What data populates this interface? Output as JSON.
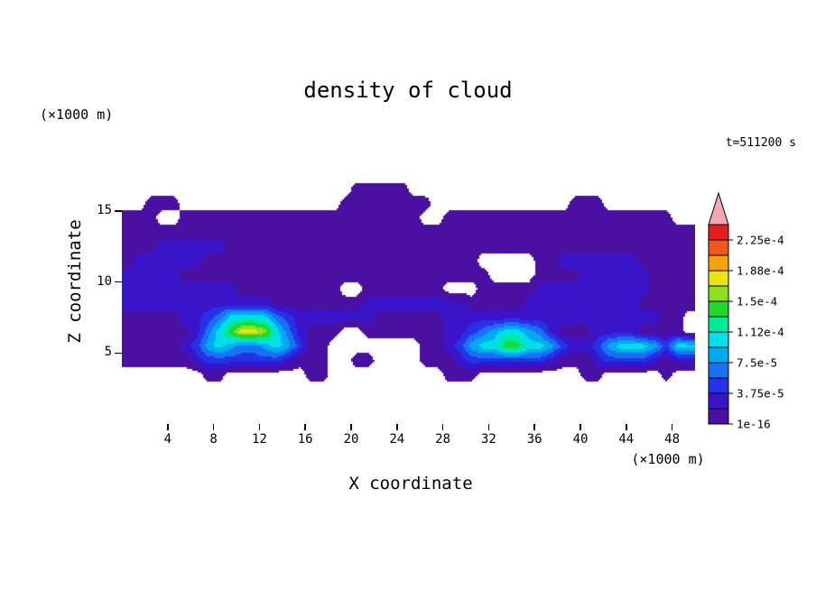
{
  "title": "density of cloud",
  "time_label": "t=511200 s",
  "axes": {
    "x_label": "X coordinate",
    "y_label": "Z coordinate",
    "x_unit": "(×1000 m)",
    "y_unit": "(×1000 m)",
    "x_ticks": [
      4,
      8,
      12,
      16,
      20,
      24,
      28,
      32,
      36,
      40,
      44,
      48
    ],
    "y_ticks": [
      5,
      10,
      15
    ],
    "x_range": [
      0,
      50
    ],
    "y_range": [
      0,
      20
    ]
  },
  "colorbar": {
    "tick_labels_bottom_to_top": [
      "1e-16",
      "3.75e-5",
      "7.5e-5",
      "1.12e-4",
      "1.5e-4",
      "1.88e-4",
      "2.25e-4"
    ],
    "arrow_color": "#f0a8b4",
    "outline_color": "#000000"
  },
  "chart_data": {
    "type": "heatmap",
    "title": "density of cloud",
    "xlabel": "X coordinate (×1000 m)",
    "ylabel": "Z coordinate (×1000 m)",
    "time": "t=511200 s",
    "x_range": [
      0,
      50
    ],
    "z_range": [
      0,
      20
    ],
    "band_edges": [
      1e-16,
      1.875e-05,
      3.75e-05,
      5.625e-05,
      7.5e-05,
      9.375e-05,
      0.0001125,
      0.00013125,
      0.00015,
      0.00016875,
      0.0001875,
      0.00020625,
      0.000225
    ],
    "palette": [
      "#4a10a2",
      "#3a14c8",
      "#2433e8",
      "#1a70f5",
      "#00aaf0",
      "#00e0e8",
      "#00e89a",
      "#22d62a",
      "#8ee01e",
      "#e6e414",
      "#f5a312",
      "#f2571f",
      "#e02020"
    ],
    "overflow_color": "#f0a8b4",
    "grid_encoding": "Each string is one row of cells from z=20 (top) to z=0 (bottom); 50 columns span x=0..50 (×1000 m). Hex digit = color band index: 0 = no cloud (white), 1-D = palette bands counting up from the 1e-16 band.",
    "grid_rows_top_to_bottom": [
      "00000000000000000000000000000000000000000000000000",
      "00000000000000000000000000000000000000000000000000",
      "00000000000000000000000000000000000000000000000000",
      "00000000000000000000111110000000000000000000000000",
      "00111000000000000001111111100000000000011100000000",
      "11100111111111111111111111001111111111111111111100",
      "11111111111111111111111111111111111111111111111111",
      "11122222211111111111111111111111111111111111111111",
      "12222221111111111111111111111110000011222222211111",
      "22222111111111111111111111111111000011112222221111",
      "22222222221111111110011111110001111122222222221111",
      "22222222222221111111122222222211111222222222211111",
      "11111223466664322222221111112222222222222222222110",
      "1111112468AA96421110011111112234566542111222211110",
      "11111235654456531100000000112356688665322356665366",
      "11111123333333211100110000111233333332111233332122",
      "00000001100000001100000000001110000000001100000100",
      "00000000000000000000000000000000000000000000000000",
      "00000000000000000000000000000000000000000000000000",
      "00000000000000000000000000000000000000000000000000"
    ]
  }
}
